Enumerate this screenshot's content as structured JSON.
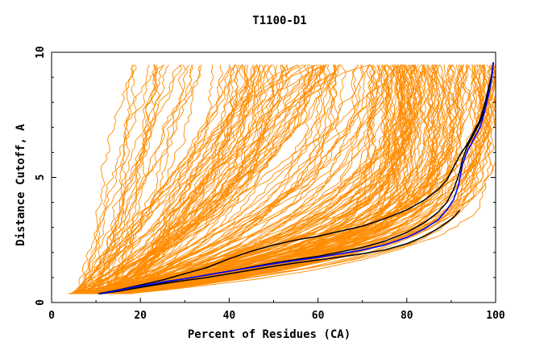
{
  "chart_data": {
    "type": "line",
    "title": "T1100-D1",
    "xlabel": "Percent of Residues (CA)",
    "ylabel": "Distance Cutoff, A",
    "xlim": [
      0,
      100
    ],
    "ylim": [
      0,
      10
    ],
    "x_ticks": [
      "0",
      "20",
      "40",
      "60",
      "80",
      "100"
    ],
    "x_tick_values": [
      0,
      20,
      40,
      60,
      80,
      100
    ],
    "y_ticks": [
      "0",
      "5",
      "10"
    ],
    "y_tick_values": [
      0,
      5,
      10
    ],
    "grid": false,
    "colors": {
      "models": "#ff8c00",
      "black_curves": "#000000",
      "highlight": "#0000ff"
    },
    "model_count": 220,
    "series": [
      {
        "color": "#0000ff",
        "x": [
          11,
          14,
          18,
          22,
          26,
          30,
          35,
          40,
          45,
          50,
          55,
          60,
          65,
          70,
          75,
          80,
          84,
          87,
          89,
          90.5,
          91.5,
          92,
          92.5,
          93.5,
          95,
          96.5,
          97.5,
          98.3,
          99,
          99.3,
          99.5
        ],
        "y": [
          0.35,
          0.45,
          0.6,
          0.72,
          0.85,
          0.95,
          1.1,
          1.25,
          1.4,
          1.55,
          1.68,
          1.8,
          1.95,
          2.1,
          2.3,
          2.6,
          2.95,
          3.3,
          3.7,
          4.1,
          4.6,
          5.0,
          5.5,
          6.0,
          6.5,
          7.0,
          7.6,
          8.2,
          8.8,
          9.2,
          9.6
        ]
      },
      {
        "color": "#000000",
        "x": [
          10.5,
          15,
          20,
          25,
          30,
          35,
          40,
          45,
          50,
          55,
          60,
          65,
          70,
          75,
          80,
          84,
          87,
          89,
          90.5,
          92,
          93.5,
          95,
          96.5,
          97.5,
          98.3,
          99,
          99.5
        ],
        "y": [
          0.35,
          0.5,
          0.7,
          0.9,
          1.15,
          1.4,
          1.75,
          2.05,
          2.3,
          2.5,
          2.65,
          2.85,
          3.05,
          3.35,
          3.7,
          4.1,
          4.5,
          4.9,
          5.4,
          5.9,
          6.3,
          6.8,
          7.3,
          7.9,
          8.5,
          9.0,
          9.6
        ]
      },
      {
        "color": "#000000",
        "x": [
          11,
          15,
          20,
          25,
          30,
          35,
          40,
          45,
          50,
          55,
          60,
          65,
          70,
          75,
          80,
          84,
          87,
          89,
          90.5,
          91.5,
          92,
          92.5,
          93.5,
          95,
          96.5,
          97.5,
          98.3,
          99,
          99.5
        ],
        "y": [
          0.35,
          0.48,
          0.65,
          0.8,
          0.95,
          1.1,
          1.25,
          1.42,
          1.58,
          1.72,
          1.85,
          2.02,
          2.2,
          2.45,
          2.8,
          3.2,
          3.6,
          4.0,
          4.5,
          5.0,
          5.3,
          5.7,
          6.2,
          6.7,
          7.2,
          7.7,
          8.3,
          8.9,
          9.6
        ]
      },
      {
        "color": "#000000",
        "x": [
          11,
          15,
          20,
          25,
          30,
          35,
          40,
          45,
          50,
          55,
          60,
          65,
          70,
          75,
          80,
          84,
          87,
          89,
          90.5,
          91.5,
          92
        ],
        "y": [
          0.35,
          0.45,
          0.6,
          0.75,
          0.88,
          1.0,
          1.15,
          1.3,
          1.45,
          1.58,
          1.7,
          1.82,
          1.95,
          2.1,
          2.35,
          2.65,
          2.95,
          3.2,
          3.4,
          3.6,
          3.7
        ]
      }
    ]
  }
}
